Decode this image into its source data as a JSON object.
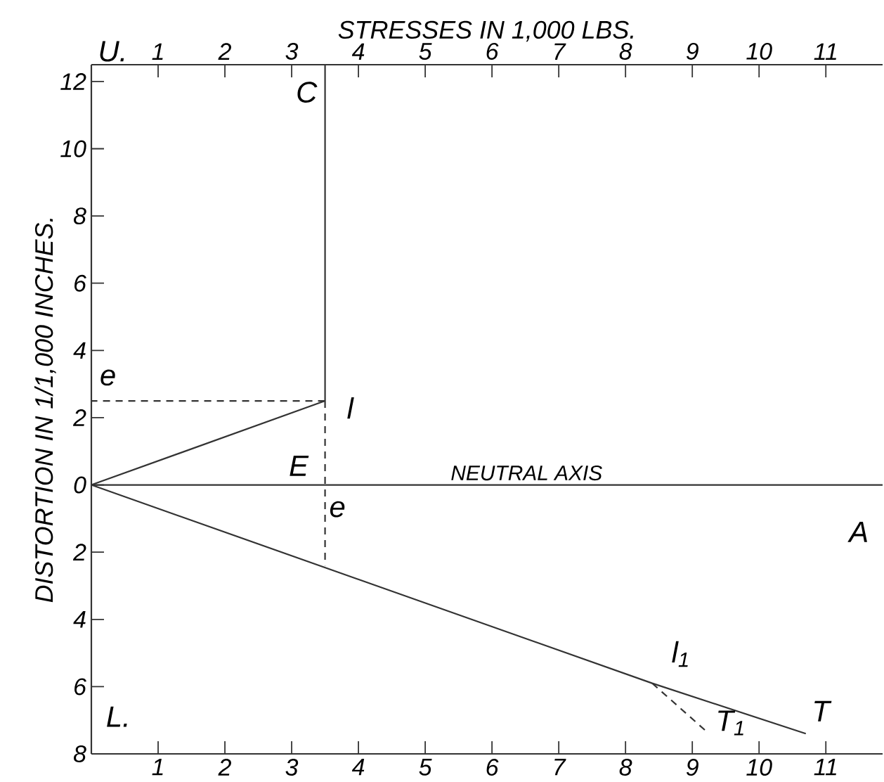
{
  "chart_data": {
    "type": "line",
    "x2label": "STRESSES IN 1,000 LBS.",
    "ylabel": "DISTORTION IN 1/1,000 INCHES.",
    "xlim": [
      0,
      11.85
    ],
    "xticks": [
      1,
      2,
      3,
      4,
      5,
      6,
      7,
      8,
      9,
      10,
      11
    ],
    "x2lim": [
      0,
      11.85
    ],
    "x2ticks": [
      1,
      2,
      3,
      4,
      5,
      6,
      7,
      8,
      9,
      10,
      11
    ],
    "ylim": [
      -8,
      12.5
    ],
    "yticks": [
      {
        "value": -8,
        "label": "8"
      },
      {
        "value": -6,
        "label": "6"
      },
      {
        "value": -4,
        "label": "4"
      },
      {
        "value": -2,
        "label": "2"
      },
      0,
      2,
      4,
      6,
      8,
      10,
      12
    ],
    "series": [
      {
        "color": "#333333",
        "x": [
          0,
          3.5
        ],
        "values": [
          0,
          2.5
        ]
      },
      {
        "color": "#333333",
        "x": [
          3.5,
          3.5
        ],
        "values": [
          2.5,
          12.5
        ]
      },
      {
        "color": "#333333",
        "x": [
          0,
          8.4,
          10.7
        ],
        "values": [
          0,
          -5.9,
          -7.4
        ]
      },
      {
        "color": "#333333",
        "x": [
          3.5,
          0
        ],
        "values": [
          2.5,
          2.5
        ],
        "line_style": "dashed"
      },
      {
        "color": "#333333",
        "x": [
          3.5,
          3.5
        ],
        "values": [
          2.5,
          -2.4
        ],
        "line_style": "dashed"
      },
      {
        "color": "#333333",
        "x": [
          8.4,
          9.25
        ],
        "values": [
          -5.9,
          -7.4
        ],
        "line_style": "dashed"
      }
    ],
    "ref_lines": [
      {
        "axis": "y",
        "value": 0,
        "label": "NEUTRAL AXIS",
        "color": "#333333"
      }
    ],
    "annotations": [
      "U.",
      "C",
      "e",
      "l",
      "E",
      "e",
      "A",
      "l$_{1}$",
      "L.",
      "T$_{1}$",
      "T"
    ]
  }
}
